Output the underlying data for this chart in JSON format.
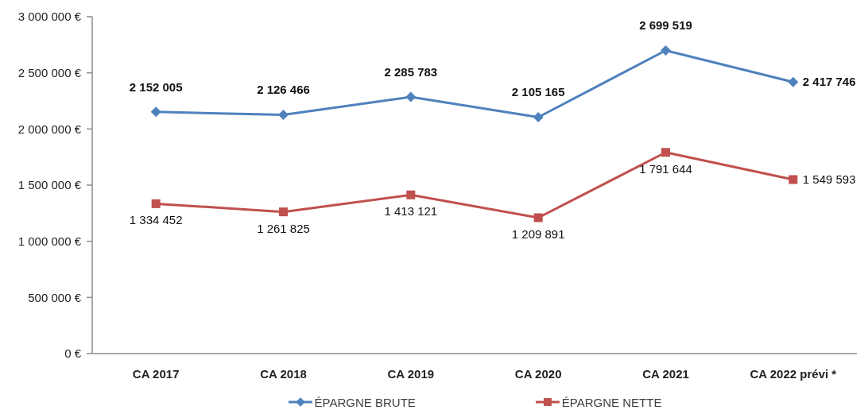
{
  "chart_data": {
    "type": "line",
    "categories": [
      "CA 2017",
      "CA 2018",
      "CA 2019",
      "CA 2020",
      "CA 2021",
      "CA 2022 prévi *"
    ],
    "series": [
      {
        "name": "ÉPARGNE BRUTE",
        "color": "#4f81bd",
        "marker": "diamond",
        "values": [
          2152005,
          2126466,
          2285783,
          2105165,
          2699519,
          2417746
        ],
        "value_labels": [
          "2 152 005",
          "2 126 466",
          "2 285 783",
          "2 105 165",
          "2 699 519",
          "2 417 746"
        ]
      },
      {
        "name": "ÉPARGNE NETTE",
        "color": "#c0504d",
        "marker": "square",
        "values": [
          1334452,
          1261825,
          1413121,
          1209891,
          1791644,
          1549593
        ],
        "value_labels": [
          "1 334 452",
          "1 261 825",
          "1 413 121",
          "1 209 891",
          "1 791 644",
          "1 549 593"
        ]
      }
    ],
    "ylim": [
      0,
      3000000
    ],
    "yticks": [
      {
        "value": 0,
        "label": "0 €"
      },
      {
        "value": 500000,
        "label": "500 000 €"
      },
      {
        "value": 1000000,
        "label": "1 000 000 €"
      },
      {
        "value": 1500000,
        "label": "1 500 000 €"
      },
      {
        "value": 2000000,
        "label": "2 000 000 €"
      },
      {
        "value": 2500000,
        "label": "2 500 000 €"
      },
      {
        "value": 3000000,
        "label": "3 000 000 €"
      }
    ],
    "legend": "bottom"
  }
}
